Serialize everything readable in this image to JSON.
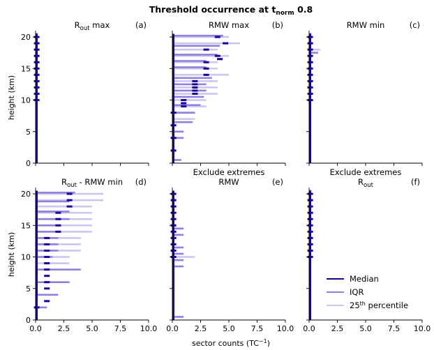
{
  "figure": {
    "title_main": "Threshold occurrence at t",
    "title_sub": "norm",
    "title_rest": " 0.8",
    "xlabel_main": "sector counts (TC",
    "xlabel_sup": "−1",
    "xlabel_end": ")",
    "ylabel": "height (km)",
    "colors": {
      "median": "#1a0099",
      "iqr": "#8f80dd",
      "p25": "#cdc6ef"
    }
  },
  "legend": {
    "placement": "lower-right of panel f",
    "items": [
      {
        "label": "Median",
        "color": "#1a0099"
      },
      {
        "label": "IQR",
        "color": "#8f80dd"
      },
      {
        "label": "25",
        "sup": "th",
        "rest": " percentile",
        "color": "#cdc6ef"
      }
    ]
  },
  "chart_data": [
    {
      "type": "bar",
      "panel": "a",
      "title_main": "R",
      "title_sub": "out",
      "title_rest": " max",
      "title_line1": "",
      "letter": "(a)",
      "xlim": [
        0,
        10
      ],
      "ylim": [
        0,
        21
      ],
      "xticks": [
        "0.0",
        "2.5",
        "5.0",
        "7.5",
        "10.0"
      ],
      "yticks": [
        "0",
        "5",
        "10",
        "15",
        "20"
      ],
      "p25_bars": [],
      "iqr_bars": [
        [
          0,
          20.5,
          0.2
        ]
      ],
      "median_ticks": [
        [
          0.1,
          20.0
        ],
        [
          0.1,
          19.0
        ],
        [
          0.1,
          18.0
        ],
        [
          0.1,
          17.0
        ],
        [
          0.1,
          16.0
        ],
        [
          0.1,
          15.0
        ],
        [
          0.1,
          14.0
        ],
        [
          0.1,
          13.0
        ],
        [
          0.1,
          12.0
        ],
        [
          0.1,
          11.0
        ],
        [
          0.1,
          10.0
        ]
      ]
    },
    {
      "type": "bar",
      "panel": "b",
      "title_main": "RMW max",
      "title_sub": "",
      "title_rest": "",
      "title_line1": "",
      "letter": "(b)",
      "xlim": [
        0,
        10
      ],
      "ylim": [
        0,
        21
      ],
      "xticks": [
        "0.0",
        "2.5",
        "5.0",
        "7.5",
        "10.0"
      ],
      "yticks": [
        "0",
        "5",
        "10",
        "15",
        "20"
      ],
      "p25_bars": [
        [
          0,
          20.0,
          5.0
        ],
        [
          0,
          19.0,
          6.0
        ],
        [
          0,
          18.0,
          4.0
        ],
        [
          0,
          17.0,
          5.0
        ],
        [
          0,
          16.0,
          4.0
        ],
        [
          0,
          15.0,
          4.0
        ],
        [
          0,
          14.0,
          5.0
        ],
        [
          0,
          13.0,
          4.0
        ],
        [
          0,
          12.0,
          4.0
        ],
        [
          0,
          11.0,
          4.0
        ],
        [
          0,
          10.0,
          3.0
        ],
        [
          0,
          9.0,
          3.0
        ],
        [
          0,
          8.0,
          2.0
        ],
        [
          0,
          7.0,
          2.0
        ]
      ],
      "iqr_bars": [
        [
          0,
          20.2,
          4.5
        ],
        [
          0,
          18.6,
          4.2
        ],
        [
          0,
          17.2,
          4.0
        ],
        [
          0,
          16.2,
          3.0
        ],
        [
          0,
          15.2,
          3.0
        ],
        [
          0,
          13.5,
          3.5
        ],
        [
          0,
          12.5,
          3.0
        ],
        [
          0,
          11.5,
          3.0
        ],
        [
          0,
          10.5,
          2.8
        ],
        [
          0,
          9.2,
          2.5
        ],
        [
          0,
          8.0,
          2.0
        ],
        [
          0,
          6.5,
          1.8
        ],
        [
          0,
          5.0,
          1.0
        ],
        [
          0,
          4.0,
          1.0
        ],
        [
          0,
          0.5,
          0.8
        ]
      ],
      "median_ticks": [
        [
          4.0,
          20.0
        ],
        [
          4.7,
          19.0
        ],
        [
          3.0,
          18.0
        ],
        [
          4.0,
          17.0
        ],
        [
          4.2,
          16.5
        ],
        [
          3.0,
          16.0
        ],
        [
          3.0,
          15.0
        ],
        [
          3.0,
          14.0
        ],
        [
          2.0,
          13.0
        ],
        [
          2.0,
          12.5
        ],
        [
          2.0,
          12.0
        ],
        [
          2.0,
          11.5
        ],
        [
          2.0,
          11.0
        ],
        [
          1.0,
          10.0
        ],
        [
          1.0,
          9.5
        ],
        [
          1.0,
          9.0
        ],
        [
          0.1,
          8.0
        ],
        [
          0.1,
          6.0
        ],
        [
          0.1,
          4.0
        ],
        [
          0.1,
          2.0
        ]
      ]
    },
    {
      "type": "bar",
      "panel": "c",
      "title_main": "RMW min",
      "title_sub": "",
      "title_rest": "",
      "title_line1": "",
      "letter": "(c)",
      "xlim": [
        0,
        10
      ],
      "ylim": [
        0,
        21
      ],
      "xticks": [
        "0.0",
        "2.5",
        "5.0",
        "7.5",
        "10.0"
      ],
      "yticks": [
        "0",
        "5",
        "10",
        "15",
        "20"
      ],
      "p25_bars": [
        [
          0,
          18.0,
          1.0
        ]
      ],
      "iqr_bars": [
        [
          0,
          20.5,
          0.2
        ],
        [
          0,
          17.5,
          0.8
        ]
      ],
      "median_ticks": [
        [
          0.1,
          20.0
        ],
        [
          0.1,
          19.0
        ],
        [
          0.1,
          18.0
        ],
        [
          0.1,
          17.0
        ],
        [
          0.1,
          16.0
        ],
        [
          0.1,
          15.0
        ],
        [
          0.1,
          14.0
        ],
        [
          0.1,
          13.0
        ],
        [
          0.1,
          12.0
        ],
        [
          0.1,
          11.0
        ],
        [
          0.1,
          10.0
        ]
      ]
    },
    {
      "type": "bar",
      "panel": "d",
      "title_main": "R",
      "title_sub": "out",
      "title_rest": " - RMW min",
      "title_line1": "",
      "letter": "(d)",
      "xlim": [
        0,
        10
      ],
      "ylim": [
        0,
        21
      ],
      "xticks": [
        "0.0",
        "2.5",
        "5.0",
        "7.5",
        "10.0"
      ],
      "yticks": [
        "0",
        "5",
        "10",
        "15",
        "20"
      ],
      "p25_bars": [
        [
          0,
          20.0,
          6.0
        ],
        [
          0,
          19.0,
          6.0
        ],
        [
          0,
          18.0,
          5.0
        ],
        [
          0,
          17.0,
          5.0
        ],
        [
          0,
          16.0,
          5.0
        ],
        [
          0,
          15.0,
          5.0
        ],
        [
          0,
          14.0,
          5.0
        ],
        [
          0,
          13.0,
          4.0
        ],
        [
          0,
          12.0,
          4.0
        ],
        [
          0,
          11.0,
          4.0
        ],
        [
          0,
          10.0,
          3.0
        ],
        [
          0,
          9.0,
          3.0
        ]
      ],
      "iqr_bars": [
        [
          0,
          20.2,
          3.5
        ],
        [
          0,
          18.8,
          3.0
        ],
        [
          0,
          17.2,
          3.0
        ],
        [
          0,
          16.0,
          3.0
        ],
        [
          0,
          15.0,
          2.0
        ],
        [
          0,
          14.0,
          2.0
        ],
        [
          0,
          13.0,
          2.0
        ],
        [
          0,
          12.0,
          2.0
        ],
        [
          0,
          11.0,
          2.0
        ],
        [
          0,
          10.0,
          1.5
        ],
        [
          0,
          8.0,
          4.0
        ],
        [
          0,
          6.0,
          3.0
        ],
        [
          0,
          4.0,
          2.0
        ],
        [
          0,
          2.0,
          1.0
        ]
      ],
      "median_ticks": [
        [
          3.0,
          20.0
        ],
        [
          3.0,
          19.0
        ],
        [
          3.0,
          18.0
        ],
        [
          2.0,
          17.0
        ],
        [
          2.0,
          16.0
        ],
        [
          2.0,
          15.0
        ],
        [
          2.0,
          14.0
        ],
        [
          1.0,
          13.0
        ],
        [
          1.0,
          12.0
        ],
        [
          1.0,
          11.0
        ],
        [
          1.0,
          10.0
        ],
        [
          1.0,
          9.0
        ],
        [
          1.0,
          8.0
        ],
        [
          1.0,
          7.0
        ],
        [
          1.0,
          6.0
        ],
        [
          1.0,
          5.0
        ],
        [
          1.0,
          3.0
        ],
        [
          0.1,
          2.0
        ]
      ]
    },
    {
      "type": "bar",
      "panel": "e",
      "title_main": "RMW",
      "title_sub": "",
      "title_rest": "",
      "title_line1": "Exclude extremes",
      "letter": "(e)",
      "xlim": [
        0,
        10
      ],
      "ylim": [
        0,
        21
      ],
      "xticks": [
        "0.0",
        "2.5",
        "5.0",
        "7.5",
        "10.0"
      ],
      "yticks": [
        "0",
        "5",
        "10",
        "15",
        "20"
      ],
      "p25_bars": [
        [
          0,
          10.0,
          2.0
        ]
      ],
      "iqr_bars": [
        [
          0,
          14.5,
          1.0
        ],
        [
          0,
          13.5,
          1.0
        ],
        [
          0,
          11.5,
          1.0
        ],
        [
          0,
          10.5,
          1.0
        ],
        [
          0,
          9.5,
          1.0
        ],
        [
          0,
          8.5,
          1.0
        ],
        [
          0,
          0.5,
          1.0
        ]
      ],
      "median_ticks": [
        [
          0.1,
          20.0
        ],
        [
          0.1,
          19.0
        ],
        [
          0.1,
          18.0
        ],
        [
          0.1,
          17.0
        ],
        [
          0.1,
          16.0
        ],
        [
          0.1,
          15.0
        ],
        [
          0.1,
          14.0
        ],
        [
          0.1,
          13.0
        ],
        [
          0.1,
          12.0
        ],
        [
          0.1,
          11.0
        ],
        [
          0.1,
          10.0
        ]
      ]
    },
    {
      "type": "bar",
      "panel": "f",
      "title_main": "R",
      "title_sub": "out",
      "title_rest": "",
      "title_line1": "Exclude extremes",
      "letter": "(f)",
      "xlim": [
        0,
        10
      ],
      "ylim": [
        0,
        21
      ],
      "xticks": [
        "0.0",
        "2.5",
        "5.0",
        "7.5",
        "10.0"
      ],
      "yticks": [
        "0",
        "5",
        "10",
        "15",
        "20"
      ],
      "p25_bars": [],
      "iqr_bars": [
        [
          0,
          20.5,
          0.2
        ]
      ],
      "median_ticks": [
        [
          0.1,
          20.0
        ],
        [
          0.1,
          19.0
        ],
        [
          0.1,
          18.0
        ],
        [
          0.1,
          17.0
        ],
        [
          0.1,
          16.0
        ],
        [
          0.1,
          15.0
        ],
        [
          0.1,
          14.0
        ],
        [
          0.1,
          13.0
        ],
        [
          0.1,
          12.0
        ],
        [
          0.1,
          11.0
        ],
        [
          0.1,
          10.0
        ]
      ]
    }
  ]
}
